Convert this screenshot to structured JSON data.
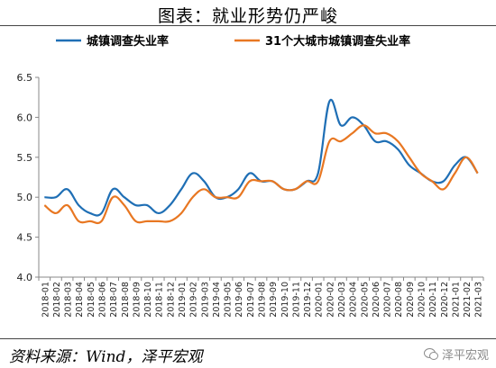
{
  "header": {
    "title": "图表：就业形势仍严峻"
  },
  "footer": {
    "source": "资料来源：Wind，泽平宏观",
    "watermark": "泽平宏观",
    "watermark_icon": "wechat-icon"
  },
  "chart_data": {
    "type": "line",
    "title": "",
    "xlabel": "",
    "ylabel": "",
    "ylim": [
      4.0,
      6.5
    ],
    "yticks": [
      "4.0",
      "4.5",
      "5.0",
      "5.5",
      "6.0",
      "6.5"
    ],
    "grid": false,
    "legend_position": "top",
    "categories": [
      "2018-01",
      "2018-02",
      "2018-03",
      "2018-04",
      "2018-05",
      "2018-06",
      "2018-07",
      "2018-08",
      "2018-09",
      "2018-10",
      "2018-11",
      "2018-12",
      "2019-01",
      "2019-02",
      "2019-03",
      "2019-04",
      "2019-05",
      "2019-06",
      "2019-07",
      "2019-08",
      "2019-09",
      "2019-10",
      "2019-11",
      "2019-12",
      "2020-01",
      "2020-02",
      "2020-03",
      "2020-04",
      "2020-05",
      "2020-06",
      "2020-07",
      "2020-08",
      "2020-09",
      "2020-10",
      "2020-11",
      "2020-12",
      "2021-01",
      "2021-02",
      "2021-03"
    ],
    "series": [
      {
        "name": "城镇调查失业率",
        "color": "#1f6fb5",
        "values": [
          5.0,
          5.0,
          5.1,
          4.9,
          4.8,
          4.8,
          5.1,
          5.0,
          4.9,
          4.9,
          4.8,
          4.9,
          5.1,
          5.3,
          5.2,
          5.0,
          5.0,
          5.1,
          5.3,
          5.2,
          5.2,
          5.1,
          5.1,
          5.2,
          5.3,
          6.2,
          5.9,
          6.0,
          5.9,
          5.7,
          5.7,
          5.6,
          5.4,
          5.3,
          5.2,
          5.2,
          5.4,
          5.5,
          5.3
        ]
      },
      {
        "name": "31个大城市城镇调查失业率",
        "color": "#e87722",
        "values": [
          4.9,
          4.8,
          4.9,
          4.7,
          4.7,
          4.7,
          5.0,
          4.9,
          4.7,
          4.7,
          4.7,
          4.7,
          4.8,
          5.0,
          5.1,
          5.0,
          5.0,
          5.0,
          5.2,
          5.2,
          5.2,
          5.1,
          5.1,
          5.2,
          5.2,
          5.7,
          5.7,
          5.8,
          5.9,
          5.8,
          5.8,
          5.7,
          5.5,
          5.3,
          5.2,
          5.1,
          5.3,
          5.5,
          5.3
        ]
      }
    ]
  }
}
